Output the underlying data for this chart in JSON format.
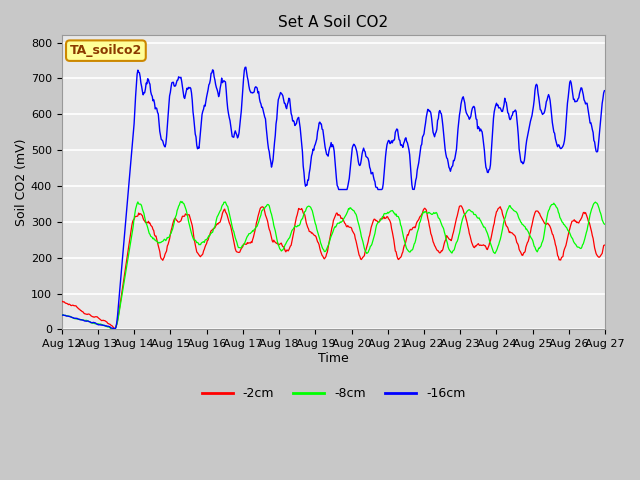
{
  "title": "Set A Soil CO2",
  "xlabel": "Time",
  "ylabel": "Soil CO2 (mV)",
  "ylim": [
    0,
    820
  ],
  "yticks": [
    0,
    100,
    200,
    300,
    400,
    500,
    600,
    700,
    800
  ],
  "xticklabels": [
    "Aug 12",
    "Aug 13",
    "Aug 14",
    "Aug 15",
    "Aug 16",
    "Aug 17",
    "Aug 18",
    "Aug 19",
    "Aug 20",
    "Aug 21",
    "Aug 22",
    "Aug 23",
    "Aug 24",
    "Aug 25",
    "Aug 26",
    "Aug 27"
  ],
  "legend_labels": [
    "-2cm",
    "-8cm",
    "-16cm"
  ],
  "legend_colors": [
    "red",
    "lime",
    "blue"
  ],
  "box_label": "TA_soilco2",
  "box_color": "#ffff99",
  "box_edge_color": "#cc8800",
  "fig_bg_color": "#c8c8c8",
  "plot_bg_color": "#e8e8e8",
  "grid_color": "white",
  "title_fontsize": 11,
  "axis_label_fontsize": 9,
  "tick_fontsize": 8
}
